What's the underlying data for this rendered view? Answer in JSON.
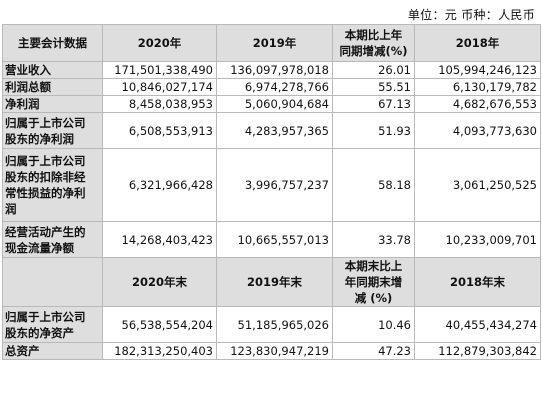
{
  "unit_note": "单位：元  币种：人民币",
  "header1": {
    "col0": "主要会计数据",
    "col1": "2020年",
    "col2": "2019年",
    "col3": [
      "本期比上年",
      "同期增减(%)"
    ],
    "col4": "2018年"
  },
  "rows1": [
    {
      "label": [
        "营业收入"
      ],
      "v2020": "171,501,338,490",
      "v2019": "136,097,978,018",
      "chg": "26.01",
      "v2018": "105,994,246,123"
    },
    {
      "label": [
        "利润总额"
      ],
      "v2020": "10,846,027,174",
      "v2019": "6,974,278,766",
      "chg": "55.51",
      "v2018": "6,130,179,782"
    },
    {
      "label": [
        "净利润"
      ],
      "v2020": "8,458,038,953",
      "v2019": "5,060,904,684",
      "chg": "67.13",
      "v2018": "4,682,676,553"
    },
    {
      "label": [
        "归属于上市公司",
        "股东的净利润"
      ],
      "v2020": "6,508,553,913",
      "v2019": "4,283,957,365",
      "chg": "51.93",
      "v2018": "4,093,773,630"
    },
    {
      "label": [
        "归属于上市公司",
        "股东的扣除非经",
        "常性损益的净利",
        "润"
      ],
      "v2020": "6,321,966,428",
      "v2019": "3,996,757,237",
      "chg": "58.18",
      "v2018": "3,061,250,525"
    },
    {
      "label": [
        "经营活动产生的",
        "现金流量净额"
      ],
      "v2020": "14,268,403,423",
      "v2019": "10,665,557,013",
      "chg": "33.78",
      "v2018": "10,233,009,701"
    }
  ],
  "header2": {
    "col0": "",
    "col1": "2020年末",
    "col2": "2019年末",
    "col3": [
      "本期末比上",
      "年同期末增",
      "减 (%)"
    ],
    "col4": "2018年末"
  },
  "rows2": [
    {
      "label": [
        "归属于上市公司",
        "股东的净资产"
      ],
      "v2020": "56,538,554,204",
      "v2019": "51,185,965,026",
      "chg": "10.46",
      "v2018": "40,455,434,274"
    },
    {
      "label": [
        "总资产"
      ],
      "v2020": "182,313,250,403",
      "v2019": "123,830,947,219",
      "chg": "47.23",
      "v2018": "112,879,303,842"
    }
  ],
  "chart_data": {
    "type": "table",
    "title": "",
    "unit": "元",
    "currency": "人民币",
    "columns": [
      "主要会计数据",
      "2020年",
      "2019年",
      "本期比上年同期增减(%)",
      "2018年"
    ],
    "rows": [
      [
        "营业收入",
        171501338490,
        136097978018,
        26.01,
        105994246123
      ],
      [
        "利润总额",
        10846027174,
        6974278766,
        55.51,
        6130179782
      ],
      [
        "净利润",
        8458038953,
        5060904684,
        67.13,
        4682676553
      ],
      [
        "归属于上市公司股东的净利润",
        6508553913,
        4283957365,
        51.93,
        4093773630
      ],
      [
        "归属于上市公司股东的扣除非经常性损益的净利润",
        6321966428,
        3996757237,
        58.18,
        3061250525
      ],
      [
        "经营活动产生的现金流量净额",
        14268403423,
        10665557013,
        33.78,
        10233009701
      ]
    ],
    "columns_2": [
      "",
      "2020年末",
      "2019年末",
      "本期末比上年同期末增减 (%)",
      "2018年末"
    ],
    "rows_2": [
      [
        "归属于上市公司股东的净资产",
        56538554204,
        51185965026,
        10.46,
        40455434274
      ],
      [
        "总资产",
        182313250403,
        123830947219,
        47.23,
        112879303842
      ]
    ]
  }
}
